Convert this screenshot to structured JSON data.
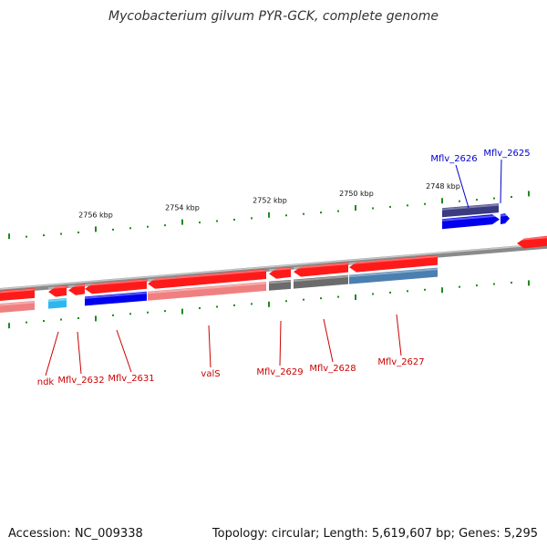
{
  "title": "Mycobacterium gilvum PYR-GCK, complete genome",
  "footer": {
    "accession": "Accession: NC_009338",
    "topology": "Topology: circular; Length: 5,619,607 bp; Genes: 5,295"
  },
  "colors": {
    "forward_red": "#ff1a1a",
    "reverse_blue": "#0000ee",
    "dark_purple": "#3b3b80",
    "steel_blue": "#4a7fb0",
    "grey": "#6b6b6b",
    "pink": "#f08080",
    "cyan": "#2ab8ee",
    "tick_green": "#1f8a1f",
    "label_red": "#cc0000",
    "label_blue": "#0000cc"
  },
  "scale_labels": [
    "2756 kbp",
    "2754 kbp",
    "2752 kbp",
    "2750 kbp",
    "2748 kbp"
  ],
  "gene_labels_top": [
    {
      "text": "Mflv_2626",
      "color": "#0000cc"
    },
    {
      "text": "Mflv_2625",
      "color": "#0000cc"
    }
  ],
  "gene_labels_bottom": [
    {
      "text": "ndk",
      "color": "#cc0000"
    },
    {
      "text": "Mflv_2632",
      "color": "#cc0000"
    },
    {
      "text": "Mflv_2631",
      "color": "#cc0000"
    },
    {
      "text": "valS",
      "color": "#cc0000"
    },
    {
      "text": "Mflv_2629",
      "color": "#cc0000"
    },
    {
      "text": "Mflv_2628",
      "color": "#cc0000"
    },
    {
      "text": "Mflv_2627",
      "color": "#cc0000"
    }
  ]
}
